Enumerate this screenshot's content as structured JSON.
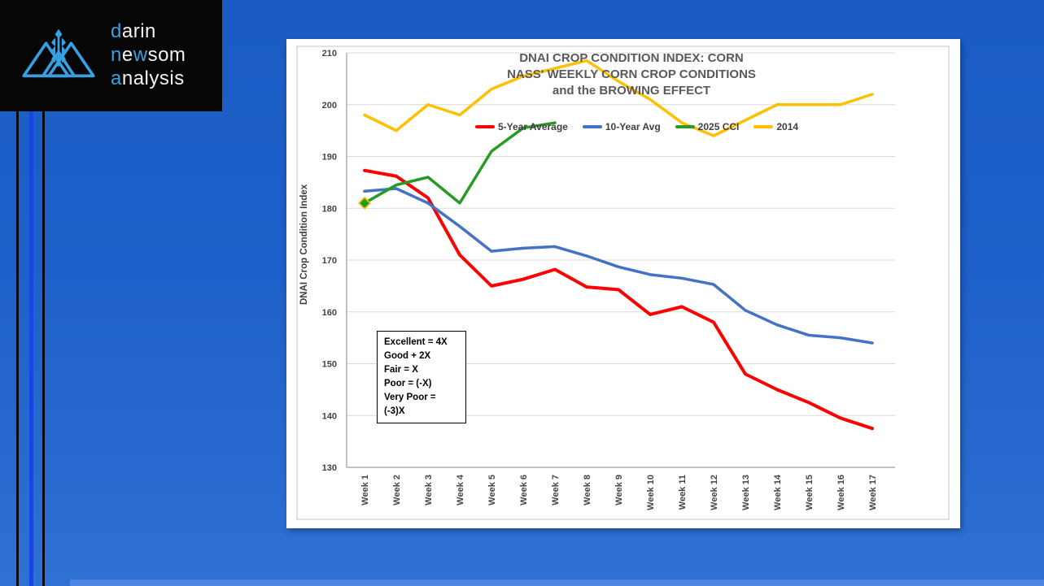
{
  "palette": {
    "background_blue": "#1d60c9",
    "logo_accent_blue": "#35a2e5",
    "stripe_bright_blue": "#1847e0",
    "bottom_strip_blue": "#4c86e2",
    "grid_gray": "#d9d9d9",
    "axis_gray": "#9d9d9d",
    "title_gray": "#595959"
  },
  "logo": {
    "lines": [
      [
        {
          "t": "d",
          "acc": true
        },
        {
          "t": "arin",
          "acc": false
        }
      ],
      [
        {
          "t": "n",
          "acc": true
        },
        {
          "t": "e",
          "acc": false
        },
        {
          "t": "w",
          "acc": true
        },
        {
          "t": "som",
          "acc": false
        }
      ],
      [
        {
          "t": "a",
          "acc": true
        },
        {
          "t": "nalysis",
          "acc": false
        }
      ]
    ]
  },
  "chart_data": {
    "type": "line",
    "title_lines": [
      "DNAI CROP CONDITION INDEX: CORN",
      "NASS' WEEKLY CORN CROP CONDITIONS",
      "and the BROWING EFFECT"
    ],
    "ylabel": "DNAI Crop Condition Index",
    "ylim": [
      130,
      210
    ],
    "yticks": [
      130,
      140,
      150,
      160,
      170,
      180,
      190,
      200,
      210
    ],
    "grid": true,
    "legend_position": "top-center-row",
    "categories": [
      "Week 1",
      "Week 2",
      "Week 3",
      "Week 4",
      "Week 5",
      "Week 6",
      "Week 7",
      "Week 8",
      "Week 9",
      "Week 10",
      "Week 11",
      "Week 12",
      "Week 13",
      "Week 14",
      "Week 15",
      "Week 16",
      "Week 17"
    ],
    "series": [
      {
        "name": "5-Year Average",
        "color": "#FF0000",
        "width": 4,
        "values": [
          187.3,
          186.2,
          182,
          171,
          165,
          166.3,
          168.2,
          164.8,
          164.3,
          159.5,
          161,
          158,
          148,
          145,
          142.5,
          139.5,
          137.5
        ]
      },
      {
        "name": "10-Year Avg",
        "color": "#4472C4",
        "width": 3.5,
        "values": [
          183.3,
          183.8,
          181,
          176.5,
          171.7,
          172.3,
          172.6,
          170.8,
          168.7,
          167.2,
          166.5,
          165.3,
          160.3,
          157.5,
          155.5,
          155,
          154
        ]
      },
      {
        "name": "2025 CCI",
        "color": "#259B24",
        "width": 3.5,
        "values": [
          181,
          184.5,
          186,
          181,
          191,
          195.5,
          196.5
        ],
        "marker": {
          "index": 0,
          "shape": "diamond",
          "fill": "#259B24",
          "stroke": "#FFC000"
        }
      },
      {
        "name": "2014",
        "color": "#FFC000",
        "width": 3.5,
        "values": [
          198,
          195,
          200,
          198,
          203,
          205.5,
          207,
          208.5,
          204.5,
          201,
          196.5,
          194,
          197,
          200,
          200,
          200,
          202
        ]
      }
    ],
    "annotation_box": [
      "Excellent = 4X",
      "Good + 2X",
      "Fair = X",
      "Poor = (-X)",
      "Very Poor = (-3)X"
    ]
  }
}
